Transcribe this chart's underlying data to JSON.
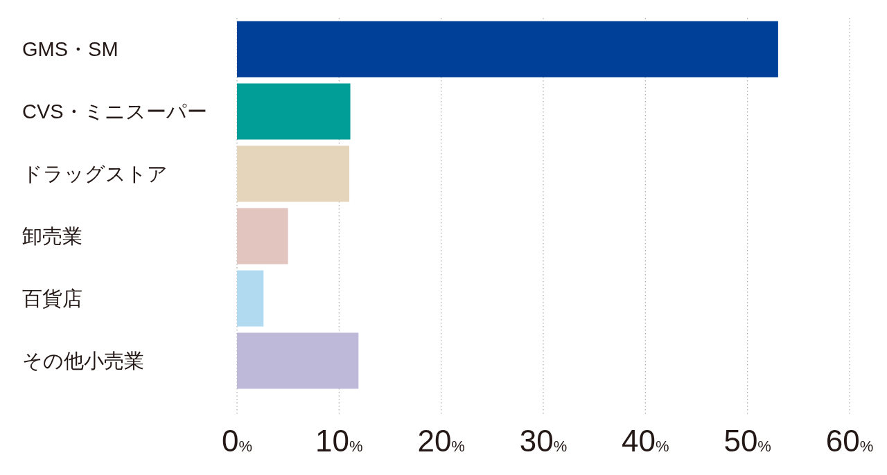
{
  "chart_data": {
    "type": "bar",
    "orientation": "horizontal",
    "categories": [
      "GMS・SM",
      "CVS・ミニスーパー",
      "ドラッグストア",
      "卸売業",
      "百貨店",
      "その他小売業"
    ],
    "values": [
      53.0,
      11.1,
      11.0,
      5.0,
      2.6,
      11.9
    ],
    "colors": [
      "#004098",
      "#009e96",
      "#e5d5bb",
      "#e3c5c0",
      "#b1d9f0",
      "#bfb9d9"
    ],
    "xlim": [
      0,
      60
    ],
    "xticks": [
      {
        "value": 0,
        "label": "0%"
      },
      {
        "value": 10,
        "label": "10%"
      },
      {
        "value": 20,
        "label": "20%"
      },
      {
        "value": 30,
        "label": "30%"
      },
      {
        "value": 40,
        "label": "40%"
      },
      {
        "value": 50,
        "label": "50%"
      },
      {
        "value": 60,
        "label": "60%"
      }
    ],
    "grid": "x"
  }
}
